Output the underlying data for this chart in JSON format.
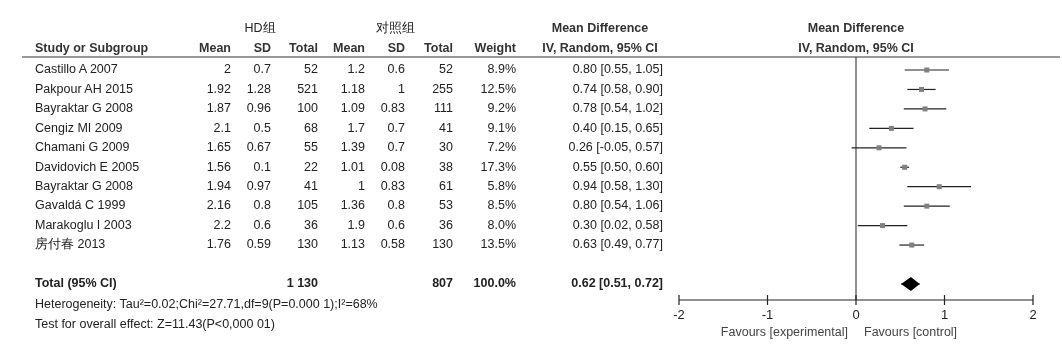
{
  "chart_data": [
    {
      "type": "other",
      "categories": [
        "Study or Subgroup",
        "Mean",
        "SD",
        "Total",
        "Mean",
        "SD",
        "Total",
        "Weight",
        "IV, Random, 95% CI"
      ],
      "y_categories": [
        "Castillo A 2007",
        "Pakpour AH 2015",
        "Bayraktar G 2008",
        "Cengiz MI 2009",
        "Chamani G 2009",
        "Davidovich E 2005",
        "Bayraktar G 2008",
        "Gavaldá C 1999",
        "Marakoglu I 2003",
        "房付春 2013",
        null,
        "Total (95% CI)"
      ],
      "cell_labels": [
        [
          "2",
          "0.7",
          "52",
          "1.2",
          "0.6",
          "52",
          "8.9%",
          "0.80 [0.55, 1.05]"
        ],
        [
          "1.92",
          "1.28",
          "521",
          "1.18",
          "1",
          "255",
          "12.5%",
          "0.74 [0.58, 0.90]"
        ],
        [
          "1.87",
          "0.96",
          "100",
          "1.09",
          "0.83",
          "111",
          "9.2%",
          "0.78 [0.54, 1.02]"
        ],
        [
          "2.1",
          "0.5",
          "68",
          "1.7",
          "0.7",
          "41",
          "9.1%",
          "0.40 [0.15, 0.65]"
        ],
        [
          "1.65",
          "0.67",
          "55",
          "1.39",
          "0.7",
          "30",
          "7.2%",
          "0.26 [-0.05, 0.57]"
        ],
        [
          "1.56",
          "0.1",
          "22",
          "1.01",
          "0.08",
          "38",
          "17.3%",
          "0.55 [0.50, 0.60]"
        ],
        [
          "1.94",
          "0.97",
          "41",
          "1",
          "0.83",
          "61",
          "5.8%",
          "0.94 [0.58, 1.30]"
        ],
        [
          "2.16",
          "0.8",
          "105",
          "1.36",
          "0.8",
          "53",
          "8.5%",
          "0.80 [0.54, 1.06]"
        ],
        [
          "2.2",
          "0.6",
          "36",
          "1.9",
          "0.6",
          "36",
          "8.0%",
          "0.30 [0.02, 0.58]"
        ],
        [
          "1.76",
          "0.59",
          "130",
          "1.13",
          "0.58",
          "130",
          "13.5%",
          "0.63 [0.49, 0.77]"
        ],
        [
          null,
          null,
          null,
          null,
          null,
          null,
          null,
          null
        ],
        [
          null,
          null,
          "1 130",
          null,
          null,
          "807",
          "100.0%",
          "0.62 [0.51, 0.72]"
        ]
      ],
      "annotations": [
        "HD组",
        "对照组",
        "Mean Difference",
        "Heterogeneity: Tau²=0.02;Chi²=27.71,df=9(P=0.000 1);I²=68%",
        "Test for overall effect: Z=11.43(P<0,000 01)"
      ]
    },
    {
      "type": "scatter",
      "orientation": "horizontal",
      "title": "Mean Difference",
      "subtitle": "IV, Random, 95% CI",
      "categories": [
        null,
        null,
        null,
        null,
        null,
        null,
        null,
        null,
        null,
        null,
        null,
        null
      ],
      "series": [
        {
          "color": "#808080",
          "marker": "square",
          "values": [
            0.8,
            0.74,
            0.78,
            0.4,
            0.26,
            0.55,
            0.94,
            0.8,
            0.3,
            0.63,
            null,
            null
          ],
          "errors": [
            [
              0.55,
              1.05
            ],
            [
              0.58,
              0.9
            ],
            [
              0.54,
              1.02
            ],
            [
              0.15,
              0.65
            ],
            [
              -0.05,
              0.57
            ],
            [
              0.5,
              0.6
            ],
            [
              0.58,
              1.3
            ],
            [
              0.54,
              1.06
            ],
            [
              0.02,
              0.58
            ],
            [
              0.49,
              0.77
            ],
            null,
            null
          ]
        },
        {
          "color": "#000000",
          "marker": "diamond",
          "values": [
            null,
            null,
            null,
            null,
            null,
            null,
            null,
            null,
            null,
            null,
            null,
            0.62
          ],
          "errors": [
            null,
            null,
            null,
            null,
            null,
            null,
            null,
            null,
            null,
            null,
            null,
            [
              0.51,
              0.72
            ]
          ]
        }
      ],
      "xlim": [
        -2,
        2
      ],
      "xticks": [
        -2,
        -1,
        0,
        1,
        2
      ],
      "ref_lines": [
        {
          "axis": "x",
          "value": 0
        }
      ],
      "annotations": [
        "Favours [experimental]",
        "Favours [control]"
      ]
    }
  ]
}
